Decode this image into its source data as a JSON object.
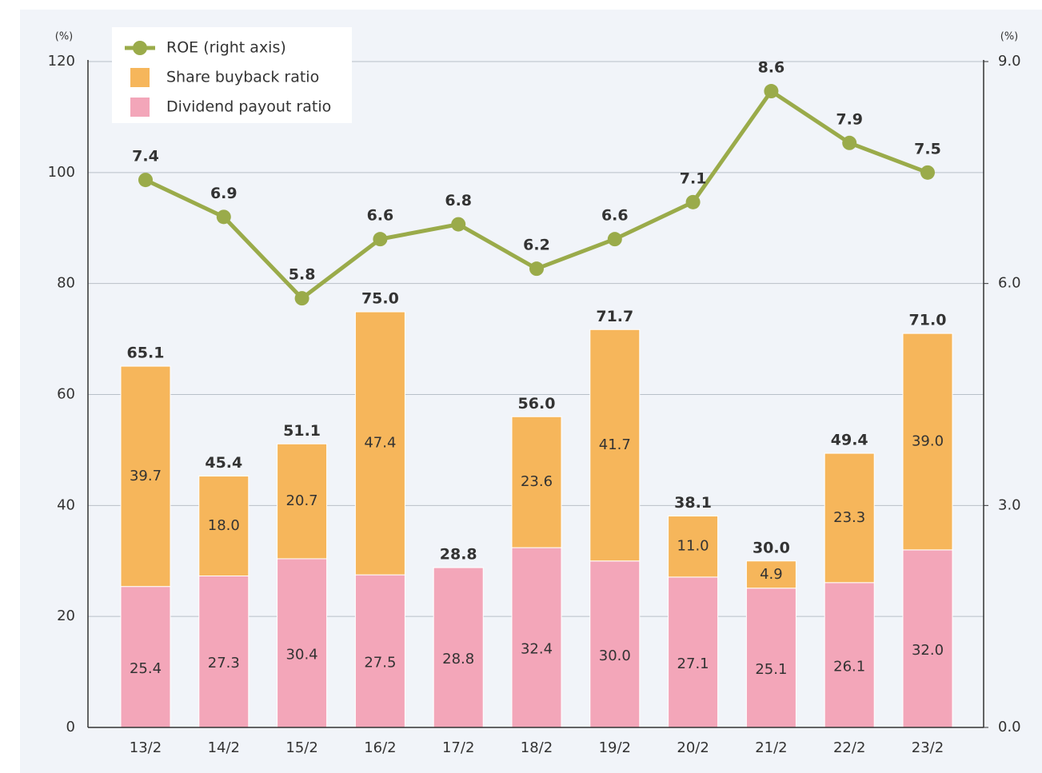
{
  "chart_data": {
    "type": "bar",
    "categories": [
      "13/2",
      "14/2",
      "15/2",
      "16/2",
      "17/2",
      "18/2",
      "19/2",
      "20/2",
      "21/2",
      "22/2",
      "23/2"
    ],
    "series": [
      {
        "name": "Dividend payout ratio",
        "color": "#f3a6b9",
        "type": "bar",
        "values": [
          25.4,
          27.3,
          30.4,
          27.5,
          28.8,
          32.4,
          30.0,
          27.1,
          25.1,
          26.1,
          32.0
        ],
        "value_labels": [
          "25.4",
          "27.3",
          "30.4",
          "27.5",
          "28.8",
          "32.4",
          "30.0",
          "27.1",
          "25.1",
          "26.1",
          "32.0"
        ]
      },
      {
        "name": "Share buyback ratio",
        "color": "#f6b65b",
        "type": "bar",
        "values": [
          39.7,
          18.0,
          20.7,
          47.4,
          null,
          23.6,
          41.7,
          11.0,
          4.9,
          23.3,
          39.0
        ],
        "value_labels": [
          "39.7",
          "18.0",
          "20.7",
          "47.4",
          null,
          "23.6",
          "41.7",
          "11.0",
          "4.9",
          "23.3",
          "39.0"
        ]
      },
      {
        "name": "ROE (right axis)",
        "color": "#9aab4a",
        "type": "line",
        "axis": "y2",
        "values": [
          7.4,
          6.9,
          5.8,
          6.6,
          6.8,
          6.2,
          6.6,
          7.1,
          8.6,
          7.9,
          7.5
        ]
      }
    ],
    "total_labels": [
      "65.1",
      "45.4",
      "51.1",
      "75.0",
      "28.8",
      "56.0",
      "71.7",
      "38.1",
      "30.0",
      "49.4",
      "71.0"
    ],
    "y_unit": "(%)",
    "y2_unit": "(%)",
    "ylim": [
      0,
      120
    ],
    "yticks": [
      0,
      20,
      40,
      60,
      80,
      100,
      120
    ],
    "y2lim": [
      0,
      9
    ],
    "y2ticks": [
      {
        "value": 0,
        "label": "0.0"
      },
      {
        "value": 3,
        "label": "3.0"
      },
      {
        "value": 6,
        "label": "6.0"
      },
      {
        "value": 9,
        "label": "9.0"
      }
    ],
    "grid": true,
    "legend": "top-left"
  }
}
